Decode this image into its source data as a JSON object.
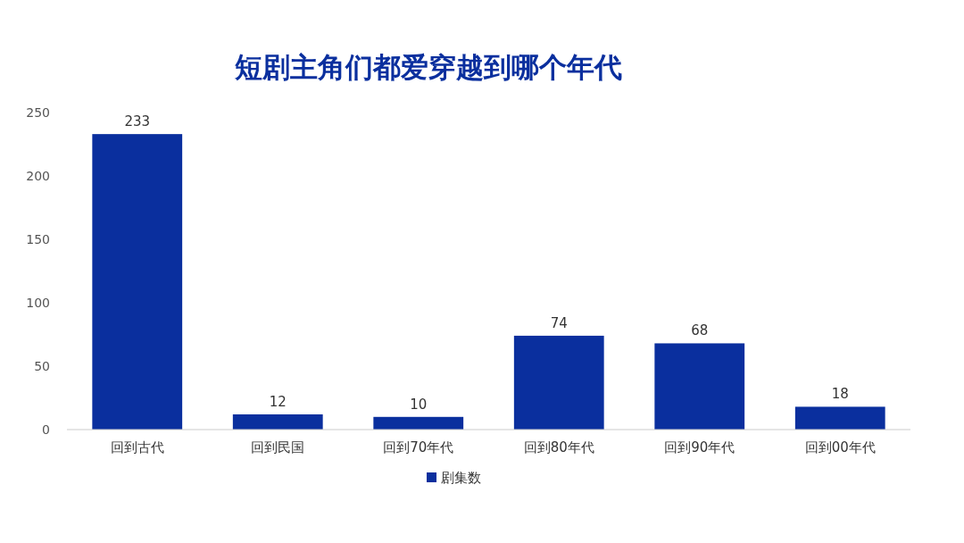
{
  "chart_data": {
    "type": "bar",
    "title": "短剧主角们都爱穿越到哪个年代",
    "categories": [
      "回到古代",
      "回到民国",
      "回到70年代",
      "回到80年代",
      "回到90年代",
      "回到00年代"
    ],
    "series": [
      {
        "name": "剧集数",
        "color": "#0a2f9e",
        "values": [
          233,
          12,
          10,
          74,
          68,
          18
        ]
      }
    ],
    "ylim": [
      0,
      250
    ],
    "yticks": [
      0,
      50,
      100,
      150,
      200,
      250
    ],
    "data_labels": true,
    "legend": "bottom"
  }
}
